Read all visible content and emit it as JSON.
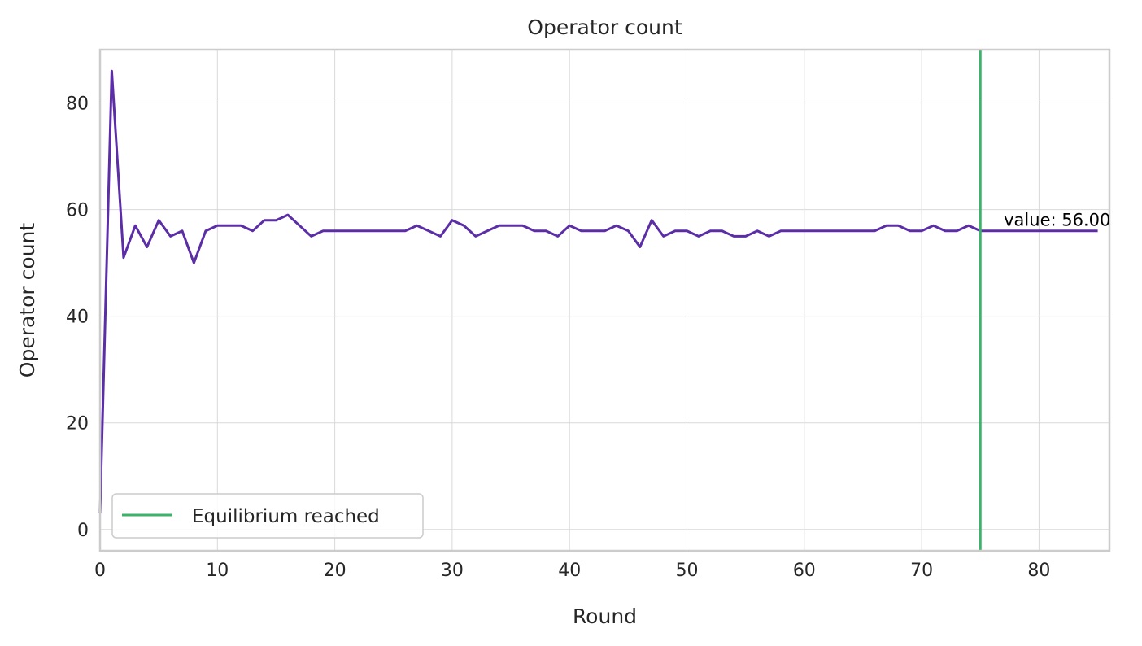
{
  "chart_data": {
    "type": "line",
    "title": "Operator count",
    "xlabel": "Round",
    "ylabel": "Operator count",
    "xlim": [
      0,
      86
    ],
    "ylim": [
      -4,
      90
    ],
    "xticks": [
      0,
      10,
      20,
      30,
      40,
      50,
      60,
      70,
      80
    ],
    "yticks": [
      0,
      20,
      40,
      60,
      80
    ],
    "grid": true,
    "legend_placement": "lower-left",
    "series": [
      {
        "color": "#5b2da6",
        "x": [
          0,
          1,
          2,
          3,
          4,
          5,
          6,
          7,
          8,
          9,
          10,
          11,
          12,
          13,
          14,
          15,
          16,
          17,
          18,
          19,
          20,
          21,
          22,
          23,
          24,
          25,
          26,
          27,
          28,
          29,
          30,
          31,
          32,
          33,
          34,
          35,
          36,
          37,
          38,
          39,
          40,
          41,
          42,
          43,
          44,
          45,
          46,
          47,
          48,
          49,
          50,
          51,
          52,
          53,
          54,
          55,
          56,
          57,
          58,
          59,
          60,
          61,
          62,
          63,
          64,
          65,
          66,
          67,
          68,
          69,
          70,
          71,
          72,
          73,
          74,
          75,
          76,
          77,
          78,
          79,
          80,
          81,
          82,
          83,
          84,
          85
        ],
        "y": [
          3,
          86,
          51,
          57,
          53,
          58,
          55,
          56,
          50,
          56,
          57,
          57,
          57,
          56,
          58,
          58,
          59,
          57,
          55,
          56,
          56,
          56,
          56,
          56,
          56,
          56,
          56,
          57,
          56,
          55,
          58,
          57,
          55,
          56,
          57,
          57,
          57,
          56,
          56,
          55,
          57,
          56,
          56,
          56,
          57,
          56,
          53,
          58,
          55,
          56,
          56,
          55,
          56,
          56,
          55,
          55,
          56,
          55,
          56,
          56,
          56,
          56,
          56,
          56,
          56,
          56,
          56,
          57,
          57,
          56,
          56,
          57,
          56,
          56,
          57,
          56,
          56,
          56,
          56,
          56,
          56,
          56,
          56,
          56,
          56,
          56
        ]
      }
    ],
    "vline": {
      "x": 75,
      "color": "#3cb36b",
      "label": "Equilibrium reached"
    },
    "annotation": {
      "text": "value: 56.00",
      "x": 77,
      "y": 58
    }
  }
}
